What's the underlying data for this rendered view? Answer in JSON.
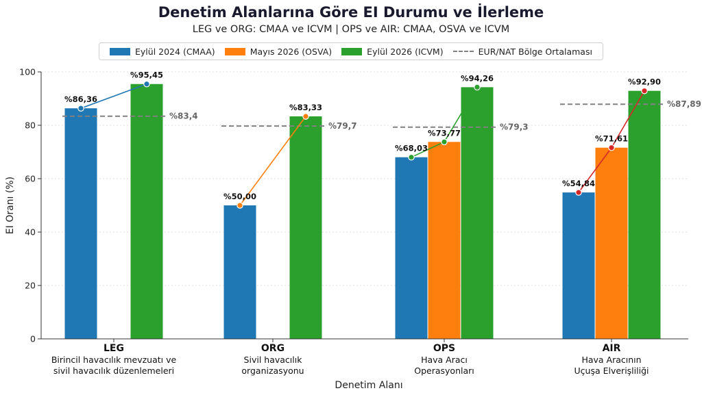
{
  "title": "Denetim Alanlarına Göre EI Durumu ve İlerleme",
  "subtitle": "LEG ve ORG: CMAA ve ICVM  |  OPS ve AIR: CMAA, OSVA ve ICVM",
  "chart_data": {
    "type": "bar",
    "title": "Denetim Alanlarına Göre EI Durumu ve İlerleme",
    "xlabel": "Denetim Alanı",
    "ylabel": "EI Oranı (%)",
    "ylim": [
      0,
      100
    ],
    "yticks": [
      "0",
      "20",
      "40",
      "60",
      "80",
      "100"
    ],
    "grid": "y",
    "legend_position": "top",
    "categories": [
      {
        "code": "LEG",
        "description": [
          "Birincil havacılık mevzuatı ve",
          "sivil havacılık düzenlemeleri"
        ]
      },
      {
        "code": "ORG",
        "description": [
          "Sivil havacılık",
          "organizasyonu"
        ]
      },
      {
        "code": "OPS",
        "description": [
          "Hava Aracı",
          "Operasyonları"
        ]
      },
      {
        "code": "AIR",
        "description": [
          "Hava Aracının",
          "Uçuşa Elverişliliği"
        ]
      }
    ],
    "series": [
      {
        "name": "Eylül 2024 (CMAA)",
        "color": "#1f77b4",
        "values": [
          86.36,
          50.0,
          68.03,
          54.84
        ],
        "labels": [
          "%86,36",
          "%50,00",
          "%68,03",
          "%54,84"
        ]
      },
      {
        "name": "Mayıs 2026 (OSVA)",
        "color": "#ff7f0e",
        "values": [
          null,
          null,
          73.77,
          71.61
        ],
        "labels": [
          "",
          "",
          "%73,77",
          "%71,61"
        ]
      },
      {
        "name": "Eylül 2026 (ICVM)",
        "color": "#2ca02c",
        "values": [
          95.45,
          83.33,
          94.26,
          92.9
        ],
        "labels": [
          "%95,45",
          "%83,33",
          "%94,26",
          "%92,90"
        ]
      }
    ],
    "reference": {
      "name": "EUR/NAT Bölge Ortalaması",
      "color": "#808080",
      "values": [
        83.4,
        79.7,
        79.3,
        87.89
      ],
      "labels": [
        "%83,4",
        "%79,7",
        "%79,3",
        "%87,89"
      ]
    },
    "trend_line_colors": [
      "#1f77b4",
      "#ff7f0e",
      "#2ca02c",
      "#d62728"
    ]
  }
}
